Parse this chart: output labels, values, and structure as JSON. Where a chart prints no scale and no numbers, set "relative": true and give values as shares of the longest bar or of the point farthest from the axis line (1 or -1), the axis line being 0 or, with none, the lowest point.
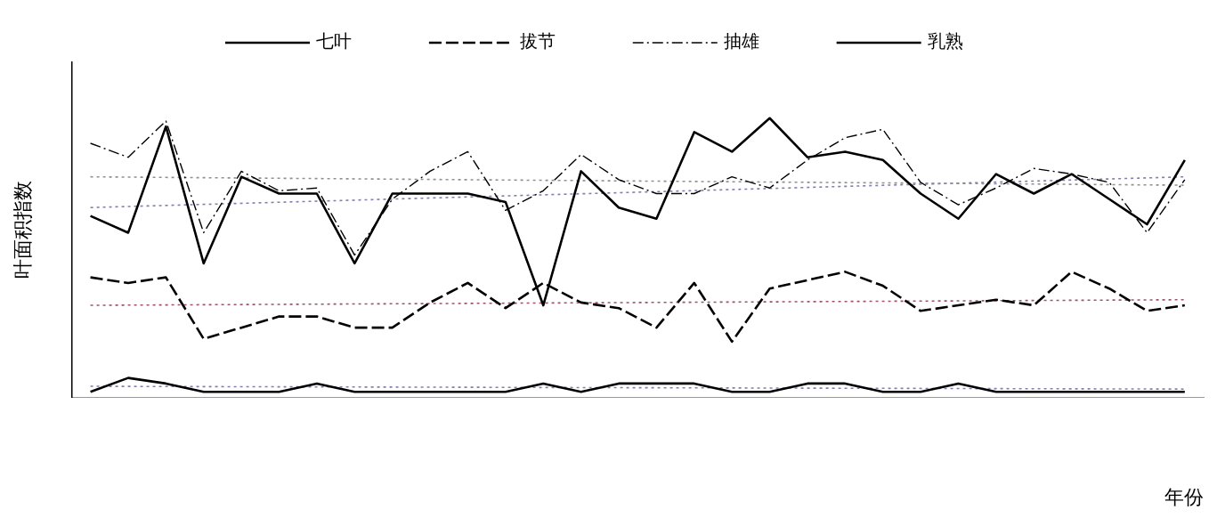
{
  "chart_data": {
    "type": "line",
    "relative": true,
    "xlabel": "年份",
    "ylabel": "叶面积指数",
    "categories": [
      null,
      null,
      null,
      null,
      null,
      null,
      null,
      null,
      null,
      null,
      null,
      null,
      null,
      null,
      null,
      null,
      null,
      null,
      null,
      null,
      null,
      null,
      null,
      null,
      null,
      null,
      null,
      null,
      null,
      null
    ],
    "tick_labels": false,
    "grid": false,
    "legend": "top",
    "marker": "none",
    "series": [
      {
        "name": "七叶",
        "color": "#000000",
        "line_style": "solid",
        "values": [
          0.02,
          0.07,
          0.05,
          0.02,
          0.02,
          0.02,
          0.05,
          0.02,
          0.02,
          0.02,
          0.02,
          0.02,
          0.05,
          0.02,
          0.05,
          0.05,
          0.05,
          0.02,
          0.02,
          0.05,
          0.05,
          0.02,
          0.02,
          0.05,
          0.02,
          0.02,
          0.02,
          0.02,
          0.02,
          0.02
        ]
      },
      {
        "name": "拔节",
        "color": "#000000",
        "line_style": "dashed",
        "values": [
          0.43,
          0.41,
          0.43,
          0.21,
          0.25,
          0.29,
          0.29,
          0.25,
          0.25,
          0.34,
          0.41,
          0.32,
          0.41,
          0.34,
          0.32,
          0.25,
          0.41,
          0.2,
          0.39,
          0.42,
          0.45,
          0.4,
          0.31,
          0.33,
          0.35,
          0.33,
          0.45,
          0.39,
          0.31,
          0.33
        ]
      },
      {
        "name": "抽雄",
        "color": "#000000",
        "line_style": "dashdot",
        "values": [
          0.91,
          0.86,
          0.99,
          0.59,
          0.81,
          0.74,
          0.75,
          0.51,
          0.71,
          0.81,
          0.88,
          0.67,
          0.74,
          0.87,
          0.78,
          0.73,
          0.73,
          0.79,
          0.75,
          0.85,
          0.93,
          0.96,
          0.77,
          0.69,
          0.75,
          0.82,
          0.8,
          0.77,
          0.59,
          0.78
        ]
      },
      {
        "name": "乳熟",
        "color": "#000000",
        "line_style": "solid",
        "values": [
          0.65,
          0.59,
          0.97,
          0.48,
          0.79,
          0.73,
          0.73,
          0.48,
          0.73,
          0.73,
          0.73,
          0.7,
          0.33,
          0.81,
          0.68,
          0.64,
          0.95,
          0.88,
          1.0,
          0.86,
          0.88,
          0.85,
          0.73,
          0.64,
          0.8,
          0.73,
          0.8,
          0.71,
          0.62,
          0.85
        ]
      },
      {
        "color": "#7f7fb0",
        "line_style": "dotted",
        "values": [
          0.04,
          null,
          null,
          null,
          null,
          null,
          null,
          null,
          null,
          null,
          null,
          null,
          null,
          null,
          null,
          null,
          null,
          null,
          null,
          null,
          null,
          null,
          null,
          null,
          null,
          null,
          null,
          null,
          null,
          0.03
        ]
      },
      {
        "color": "#a05070",
        "line_style": "dotted",
        "values": [
          0.33,
          null,
          null,
          null,
          null,
          null,
          null,
          null,
          null,
          null,
          null,
          null,
          null,
          null,
          null,
          null,
          null,
          null,
          null,
          null,
          null,
          null,
          null,
          null,
          null,
          null,
          null,
          null,
          null,
          0.35
        ]
      },
      {
        "color": "#909090",
        "line_style": "dotted",
        "values": [
          0.79,
          null,
          null,
          null,
          null,
          null,
          null,
          null,
          null,
          null,
          null,
          null,
          null,
          null,
          null,
          null,
          null,
          null,
          null,
          null,
          null,
          null,
          null,
          null,
          null,
          null,
          null,
          null,
          null,
          0.76
        ]
      },
      {
        "color": "#7f7fb0",
        "line_style": "dotted",
        "values": [
          0.68,
          null,
          null,
          null,
          null,
          null,
          null,
          null,
          null,
          null,
          null,
          null,
          null,
          null,
          null,
          null,
          null,
          null,
          null,
          null,
          null,
          null,
          null,
          null,
          null,
          null,
          null,
          null,
          null,
          0.79
        ]
      }
    ]
  }
}
